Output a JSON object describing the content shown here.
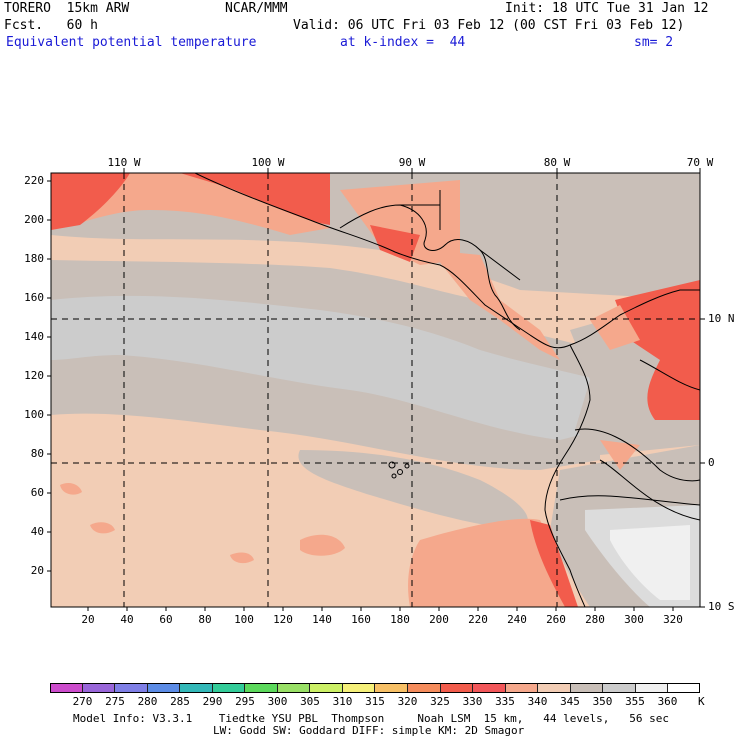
{
  "header": {
    "model": "TORERO  15km ARW",
    "org": "NCAR/MMM",
    "init": "Init: 18 UTC Tue 31 Jan 12",
    "fcst": "Fcst.   60 h",
    "valid": "Valid: 06 UTC Fri 03 Feb 12 (00 CST Fri 03 Feb 12)",
    "field": "Equivalent potential temperature",
    "level": "at k-index =  44",
    "smooth": "sm= 2"
  },
  "axes": {
    "lon_labels": [
      "110 W",
      "100 W",
      "90 W",
      "80 W",
      "70 W"
    ],
    "lat_labels": [
      "10 N",
      "0",
      "10 S"
    ],
    "y_ticks": [
      "220",
      "200",
      "180",
      "160",
      "140",
      "120",
      "100",
      "80",
      "60",
      "40",
      "20"
    ],
    "x_ticks": [
      "20",
      "40",
      "60",
      "80",
      "100",
      "120",
      "140",
      "160",
      "180",
      "200",
      "220",
      "240",
      "260",
      "280",
      "300",
      "320"
    ]
  },
  "colorbar": {
    "unit": "K",
    "labels": [
      "270",
      "275",
      "280",
      "285",
      "290",
      "295",
      "300",
      "305",
      "310",
      "315",
      "320",
      "325",
      "330",
      "335",
      "340",
      "345",
      "350",
      "355",
      "360"
    ],
    "colors": [
      "#cc4ccc",
      "#9966d9",
      "#7f7fe6",
      "#5c8ce6",
      "#33b8b8",
      "#33cc99",
      "#5cd95c",
      "#99e066",
      "#ccf066",
      "#f5f07a",
      "#f7c066",
      "#f58c5c",
      "#f25c4c",
      "#f2575a",
      "#f5a88c",
      "#f2cdb5",
      "#c9bfb8",
      "#cccccc",
      "#f0f0f0",
      "#ffffff"
    ]
  },
  "footer": {
    "line1": "Model Info: V3.3.1    Tiedtke YSU PBL  Thompson     Noah LSM  15 km,   44 levels,   56 sec",
    "line2": "LW: Godd SW: Goddard DIFF: simple KM: 2D Smagor"
  }
}
